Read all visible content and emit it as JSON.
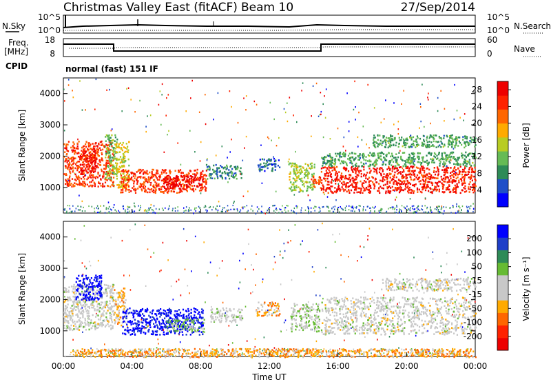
{
  "header": {
    "site": "Christmas Valley East (fitACF)",
    "beam": "Beam 10",
    "date": "27/Sep/2014"
  },
  "noise_panel": {
    "left_label": "N.Sky",
    "left_ticks": [
      "10^5",
      "10^0"
    ],
    "right_label": "N.Search",
    "right_ticks": [
      "10^5",
      "10^0"
    ]
  },
  "freq_panel": {
    "left_label_1": "Freq.",
    "left_label_2": "[MHz]",
    "left_ticks": [
      "18",
      "8"
    ],
    "right_label": "Nave",
    "right_ticks": [
      "60",
      "0"
    ]
  },
  "cpid": {
    "label": "CPID",
    "value": "normal (fast) 151 IF"
  },
  "colors": {
    "power": [
      "#0000ff",
      "#1f4fc8",
      "#2e8b57",
      "#66bb55",
      "#b8cc22",
      "#ffaa00",
      "#ff6600",
      "#ff2200",
      "#ee0000"
    ],
    "velocity": [
      "#ee0000",
      "#ff2200",
      "#ff6600",
      "#ffaa00",
      "#c8c8c8",
      "#c8c8c8",
      "#66bb33",
      "#2e8b57",
      "#1f3fc8",
      "#0000ff"
    ]
  },
  "chart_data": [
    {
      "type": "heatmap",
      "panel": "power",
      "ylabel": "Slant Range [km]",
      "ylim": [
        180,
        4500
      ],
      "y_ticks": [
        "1000",
        "2000",
        "3000",
        "4000"
      ],
      "x_ticks": [
        "00:00",
        "04:00",
        "08:00",
        "12:00",
        "16:00",
        "20:00",
        "00:00"
      ],
      "xlim_hours": [
        0,
        24
      ],
      "colorbar": {
        "label": "Power [dB]",
        "ticks": [
          "4",
          "8",
          "12",
          "16",
          "20",
          "24",
          "28"
        ],
        "range": [
          0,
          30
        ]
      },
      "regions": [
        {
          "t": [
            0.0,
            2.9
          ],
          "r": [
            1050,
            2500
          ],
          "level": 24
        },
        {
          "t": [
            0.9,
            1.9
          ],
          "r": [
            1500,
            2200
          ],
          "level": 28
        },
        {
          "t": [
            2.4,
            3.1
          ],
          "r": [
            1300,
            2700
          ],
          "level": 12
        },
        {
          "t": [
            3.0,
            3.8
          ],
          "r": [
            1000,
            2500
          ],
          "level": 16
        },
        {
          "t": [
            3.3,
            8.3
          ],
          "r": [
            850,
            1600
          ],
          "level": 24
        },
        {
          "t": [
            5.8,
            8.1
          ],
          "r": [
            950,
            1400
          ],
          "level": 30
        },
        {
          "t": [
            8.3,
            10.4
          ],
          "r": [
            1300,
            1750
          ],
          "level": 8
        },
        {
          "t": [
            11.3,
            12.6
          ],
          "r": [
            1550,
            1950
          ],
          "level": 6
        },
        {
          "t": [
            13.1,
            14.6
          ],
          "r": [
            900,
            1800
          ],
          "level": 14
        },
        {
          "t": [
            14.4,
            15.0
          ],
          "r": [
            1000,
            1400
          ],
          "level": 24
        },
        {
          "t": [
            15.0,
            24.0
          ],
          "r": [
            850,
            1700
          ],
          "level": 26
        },
        {
          "t": [
            15.0,
            24.0
          ],
          "r": [
            1700,
            2150
          ],
          "level": 10
        },
        {
          "t": [
            18.0,
            24.0
          ],
          "r": [
            2300,
            2700
          ],
          "level": 10
        }
      ]
    },
    {
      "type": "heatmap",
      "panel": "velocity",
      "ylabel": "Slant Range [km]",
      "xlabel": "Time UT",
      "ylim": [
        180,
        4500
      ],
      "y_ticks": [
        "1000",
        "2000",
        "3000",
        "4000"
      ],
      "x_ticks": [
        "00:00",
        "04:00",
        "08:00",
        "12:00",
        "16:00",
        "20:00",
        "00:00"
      ],
      "xlim_hours": [
        0,
        24
      ],
      "colorbar": {
        "label": "Velocity [m s⁻¹]",
        "ticks": [
          "-200",
          "-100",
          "-50",
          "-15",
          "15",
          "50",
          "100",
          "200"
        ],
        "range": [
          -250,
          250
        ]
      },
      "regions": [
        {
          "t": [
            0.0,
            2.9
          ],
          "r": [
            1050,
            2500
          ],
          "level": 0
        },
        {
          "t": [
            0.7,
            2.2
          ],
          "r": [
            2000,
            2800
          ],
          "level": 230
        },
        {
          "t": [
            2.9,
            3.6
          ],
          "r": [
            1200,
            2400
          ],
          "level": -60
        },
        {
          "t": [
            3.4,
            8.1
          ],
          "r": [
            900,
            1750
          ],
          "level": 230
        },
        {
          "t": [
            6.0,
            8.2
          ],
          "r": [
            1000,
            1400
          ],
          "level": 60
        },
        {
          "t": [
            8.5,
            10.4
          ],
          "r": [
            1300,
            1750
          ],
          "level": 10
        },
        {
          "t": [
            11.2,
            12.6
          ],
          "r": [
            1500,
            1950
          ],
          "level": -70
        },
        {
          "t": [
            13.2,
            14.9
          ],
          "r": [
            1000,
            1900
          ],
          "level": 40
        },
        {
          "t": [
            15.0,
            24.0
          ],
          "r": [
            900,
            2100
          ],
          "level": 0
        },
        {
          "t": [
            18.5,
            24.0
          ],
          "r": [
            2300,
            2700
          ],
          "level": 0
        },
        {
          "t": [
            0.5,
            24.0
          ],
          "r": [
            180,
            450
          ],
          "level": -80
        }
      ]
    }
  ]
}
